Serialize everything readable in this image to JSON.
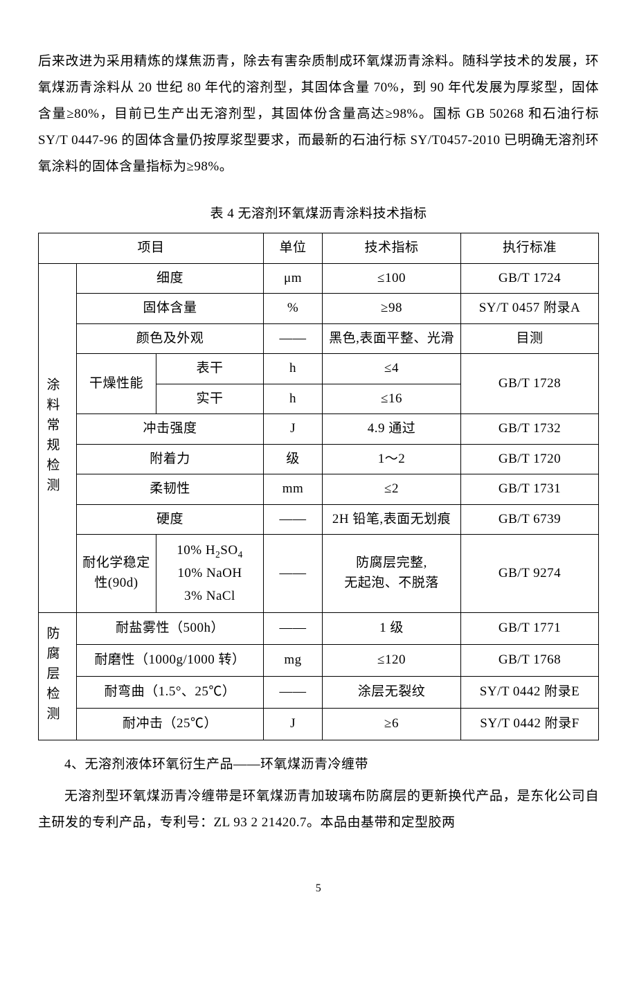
{
  "intro_para": "后来改进为采用精炼的煤焦沥青，除去有害杂质制成环氧煤沥青涂料。随科学技术的发展，环氧煤沥青涂料从 20 世纪 80 年代的溶剂型，其固体含量 70%，到 90 年代发展为厚浆型，固体含量≥80%，目前已生产出无溶剂型，其固体份含量高达≥98%。国标 GB 50268 和石油行标 SY/T 0447-96 的固体含量仍按厚浆型要求，而最新的石油行标 SY/T0457-2010 已明确无溶剂环氧涂料的固体含量指标为≥98%。",
  "table_caption": "表 4 无溶剂环氧煤沥青涂料技术指标",
  "columns": {
    "item": "项目",
    "unit": "单位",
    "spec": "技术指标",
    "standard": "执行标准"
  },
  "group1": "涂料常规检测",
  "group2": "防腐层检测",
  "rows": {
    "r1": {
      "item": "细度",
      "unit": "μm",
      "spec": "≤100",
      "std": "GB/T 1724"
    },
    "r2": {
      "item": "固体含量",
      "unit": "%",
      "spec": "≥98",
      "std": "SY/T 0457 附录A"
    },
    "r3": {
      "item": "颜色及外观",
      "unit": "——",
      "spec": "黑色,表面平整、光滑",
      "std": "目测"
    },
    "r4": {
      "item1": "干燥性能",
      "item2": "表干",
      "unit": "h",
      "spec": "≤4",
      "std": "GB/T 1728"
    },
    "r5": {
      "item2": "实干",
      "unit": "h",
      "spec": "≤16"
    },
    "r6": {
      "item": "冲击强度",
      "unit": "J",
      "spec": "4.9 通过",
      "std": "GB/T 1732"
    },
    "r7": {
      "item": "附着力",
      "unit": "级",
      "spec": "1～2",
      "std": "GB/T 1720"
    },
    "r8": {
      "item": "柔韧性",
      "unit": "mm",
      "spec": "≤2",
      "std": "GB/T 1731"
    },
    "r9": {
      "item": "硬度",
      "unit": "——",
      "spec": "2H 铅笔,表面无划痕",
      "std": "GB/T 6739"
    },
    "r10": {
      "item1": "耐化学稳定性(90d)",
      "item2a": "10% H",
      "item2b": "SO",
      "item2c": "10% NaOH",
      "item2d": "3% NaCl",
      "unit": "——",
      "spec": "防腐层完整,\n无起泡、不脱落",
      "std": "GB/T 9274"
    },
    "r11": {
      "item": "耐盐雾性（500h）",
      "unit": "——",
      "spec": "1 级",
      "std": "GB/T 1771"
    },
    "r12": {
      "item": "耐磨性（1000g/1000 转）",
      "unit": "mg",
      "spec": "≤120",
      "std": "GB/T 1768"
    },
    "r13": {
      "item": "耐弯曲（1.5°、25℃）",
      "unit": "——",
      "spec": "涂层无裂纹",
      "std": "SY/T 0442 附录E"
    },
    "r14": {
      "item": "耐冲击（25℃）",
      "unit": "J",
      "spec": "≥6",
      "std": "SY/T 0442 附录F"
    }
  },
  "section_head": "4、无溶剂液体环氧衍生产品——环氧煤沥青冷缠带",
  "body_para": "无溶剂型环氧煤沥青冷缠带是环氧煤沥青加玻璃布防腐层的更新换代产品，是东化公司自主研发的专利产品，专利号：ZL 93 2 21420.7。本品由基带和定型胶两",
  "page_num": "5"
}
